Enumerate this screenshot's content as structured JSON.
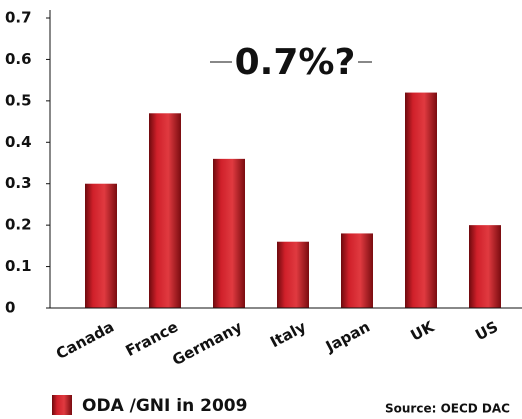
{
  "chart_data": {
    "type": "bar",
    "categories": [
      "Canada",
      "France",
      "Germany",
      "Italy",
      "Japan",
      "UK",
      "US"
    ],
    "series": [
      {
        "name": "ODA /GNI in 2009",
        "color": "#c8161e",
        "values": [
          0.3,
          0.47,
          0.36,
          0.16,
          0.18,
          0.52,
          0.2
        ]
      }
    ],
    "ylim": [
      0,
      0.7
    ],
    "yticks": [
      0,
      0.1,
      0.2,
      0.3,
      0.4,
      0.5,
      0.6,
      0.7
    ],
    "annotations": [
      "0.7%?",
      "Source: OECD DAC"
    ],
    "legend": "bottom-left"
  }
}
